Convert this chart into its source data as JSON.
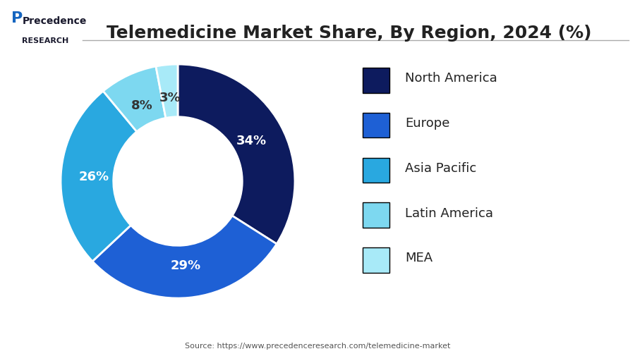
{
  "title": "Telemedicine Market Share, By Region, 2024 (%)",
  "regions": [
    "North America",
    "Europe",
    "Asia Pacific",
    "Latin America",
    "MEA"
  ],
  "values": [
    34,
    29,
    26,
    8,
    3
  ],
  "colors": [
    "#0d1b5e",
    "#1e60d5",
    "#29a8e0",
    "#7dd8f0",
    "#a8eaf8"
  ],
  "labels": [
    "34%",
    "29%",
    "26%",
    "8%",
    "3%"
  ],
  "label_colors": [
    "white",
    "white",
    "white",
    "#333333",
    "#333333"
  ],
  "source_text": "Source: https://www.precedenceresearch.com/telemedicine-market",
  "background_color": "#ffffff",
  "title_fontsize": 18,
  "label_fontsize": 13,
  "legend_fontsize": 13
}
